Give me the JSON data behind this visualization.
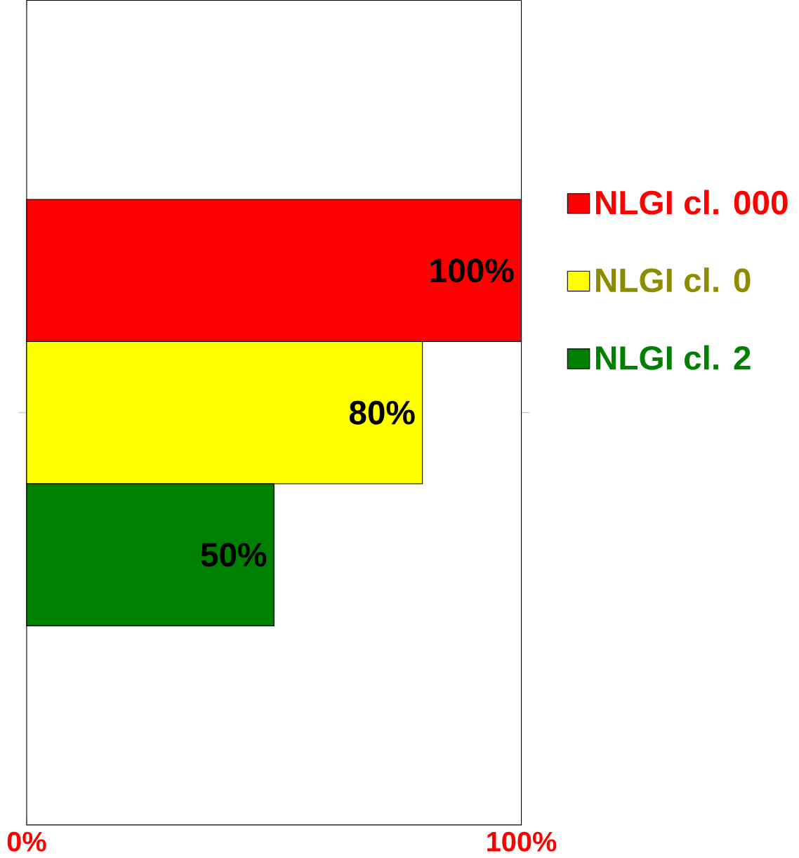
{
  "chart_data": {
    "type": "bar",
    "orientation": "horizontal",
    "categories": [
      null
    ],
    "series": [
      {
        "name": "NLGI cl. 000",
        "color": "#ff0000",
        "values": [
          100
        ],
        "value_labels": [
          "100%"
        ]
      },
      {
        "name": "NLGI cl. 0",
        "color": "#ffff00",
        "values": [
          80
        ],
        "value_labels": [
          "80%"
        ]
      },
      {
        "name": "NLGI cl. 2",
        "color": "#008000",
        "values": [
          50
        ],
        "value_labels": [
          "50%"
        ]
      }
    ],
    "xlim": [
      0,
      100
    ],
    "xticks": [
      {
        "value": 0,
        "label": "0%"
      },
      {
        "value": 100,
        "label": "100%"
      }
    ],
    "tick_labels": "x",
    "legend": "right",
    "grid": false
  }
}
